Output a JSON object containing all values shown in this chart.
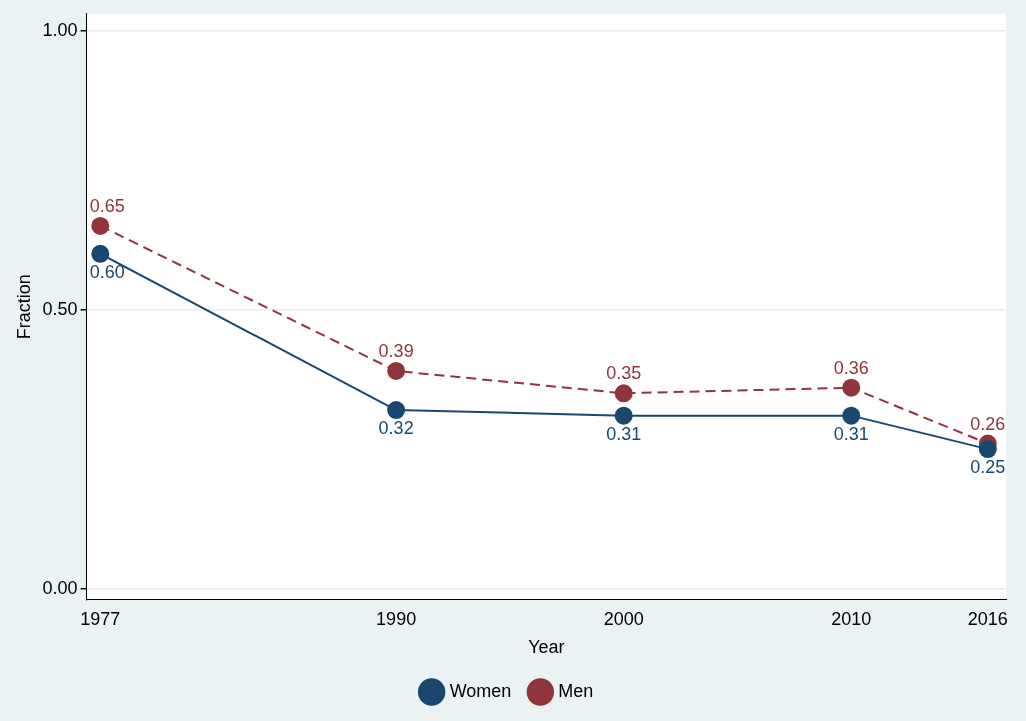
{
  "chart_data": {
    "type": "line",
    "xlabel": "Year",
    "ylabel": "Fraction",
    "x": [
      1977,
      1990,
      2000,
      2010,
      2016
    ],
    "xlim": [
      1976.4,
      2016.8
    ],
    "xticks": [
      1977,
      1990,
      2000,
      2010,
      2016
    ],
    "ylim": [
      -0.02,
      1.03
    ],
    "yticks": [
      {
        "value": 0,
        "label": "0.00"
      },
      {
        "value": 0.5,
        "label": "0.50"
      },
      {
        "value": 1,
        "label": "1.00"
      }
    ],
    "grid": "y",
    "legend": "bottom",
    "marker": "circle",
    "series": [
      {
        "name": "Women",
        "color": "#1a476f",
        "line_style": "solid",
        "values": [
          0.6,
          0.32,
          0.31,
          0.31,
          0.25
        ],
        "value_labels": [
          "0.60",
          "0.32",
          "0.31",
          "0.31",
          "0.25"
        ]
      },
      {
        "name": "Men",
        "color": "#90353b",
        "line_style": "dashed",
        "values": [
          0.65,
          0.39,
          0.35,
          0.36,
          0.26
        ],
        "value_labels": [
          "0.65",
          "0.39",
          "0.35",
          "0.36",
          "0.26"
        ]
      }
    ]
  }
}
